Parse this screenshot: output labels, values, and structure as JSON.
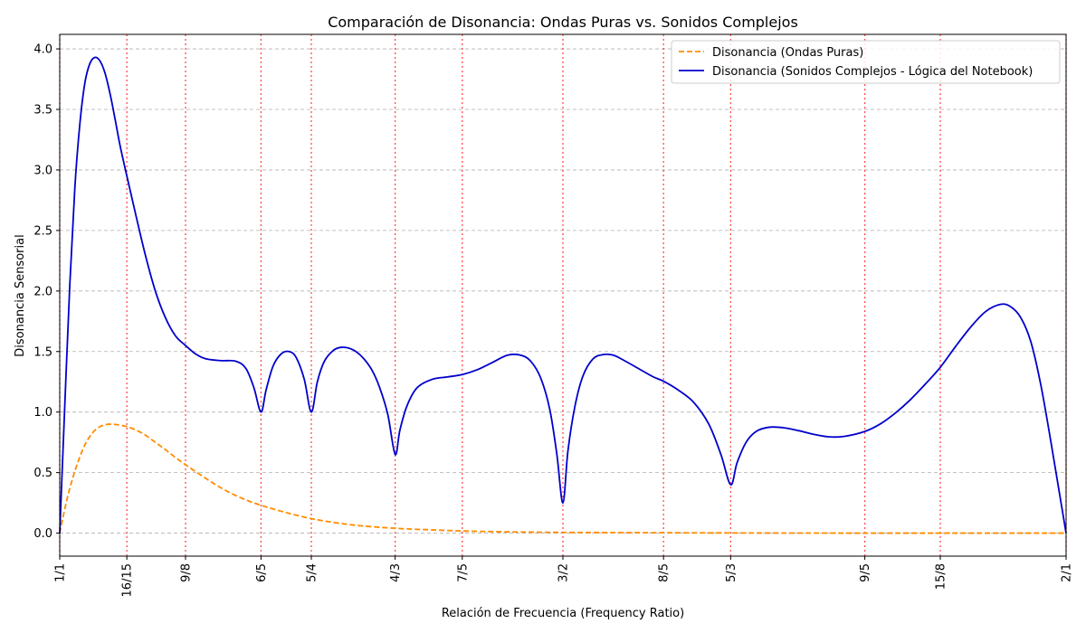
{
  "chart_data": {
    "type": "line",
    "title": "Comparación de Disonancia: Ondas Puras vs. Sonidos Complejos",
    "xlabel": "Relación de Frecuencia (Frequency Ratio)",
    "ylabel": "Disonancia Sensorial",
    "xlim": [
      1.0,
      2.0
    ],
    "ylim": [
      -0.19,
      4.12
    ],
    "y_ticks": [
      0.0,
      0.5,
      1.0,
      1.5,
      2.0,
      2.5,
      3.0,
      3.5,
      4.0
    ],
    "y_tick_labels": [
      "0.0",
      "0.5",
      "1.0",
      "1.5",
      "2.0",
      "2.5",
      "3.0",
      "3.5",
      "4.0"
    ],
    "x_ticks": [
      {
        "label": "1/1",
        "value": 1.0
      },
      {
        "label": "16/15",
        "value": 1.0667
      },
      {
        "label": "9/8",
        "value": 1.125
      },
      {
        "label": "6/5",
        "value": 1.2
      },
      {
        "label": "5/4",
        "value": 1.25
      },
      {
        "label": "4/3",
        "value": 1.3333
      },
      {
        "label": "7/5",
        "value": 1.4
      },
      {
        "label": "3/2",
        "value": 1.5
      },
      {
        "label": "8/5",
        "value": 1.6
      },
      {
        "label": "5/3",
        "value": 1.6667
      },
      {
        "label": "9/5",
        "value": 1.8
      },
      {
        "label": "15/8",
        "value": 1.875
      },
      {
        "label": "2/1",
        "value": 2.0
      }
    ],
    "grid": "horizontal dashed",
    "reference_lines": "vertical dotted red at each ratio tick",
    "legend_position": "top-right",
    "series": [
      {
        "name": "Disonancia (Ondas Puras)",
        "color": "#ff8c00",
        "style": "dashed",
        "points": [
          [
            1.0,
            0.0
          ],
          [
            1.005,
            0.2
          ],
          [
            1.01,
            0.37
          ],
          [
            1.015,
            0.51
          ],
          [
            1.02,
            0.63
          ],
          [
            1.025,
            0.73
          ],
          [
            1.03,
            0.8
          ],
          [
            1.035,
            0.85
          ],
          [
            1.04,
            0.88
          ],
          [
            1.045,
            0.895
          ],
          [
            1.05,
            0.9
          ],
          [
            1.055,
            0.898
          ],
          [
            1.06,
            0.892
          ],
          [
            1.0667,
            0.88
          ],
          [
            1.075,
            0.855
          ],
          [
            1.085,
            0.81
          ],
          [
            1.095,
            0.75
          ],
          [
            1.105,
            0.69
          ],
          [
            1.115,
            0.625
          ],
          [
            1.125,
            0.565
          ],
          [
            1.14,
            0.48
          ],
          [
            1.155,
            0.4
          ],
          [
            1.17,
            0.33
          ],
          [
            1.185,
            0.275
          ],
          [
            1.2,
            0.23
          ],
          [
            1.225,
            0.17
          ],
          [
            1.25,
            0.12
          ],
          [
            1.275,
            0.085
          ],
          [
            1.3,
            0.06
          ],
          [
            1.3333,
            0.04
          ],
          [
            1.36,
            0.03
          ],
          [
            1.4,
            0.018
          ],
          [
            1.45,
            0.01
          ],
          [
            1.5,
            0.006
          ],
          [
            1.6,
            0.003
          ],
          [
            1.7,
            0.001
          ],
          [
            1.8,
            0.0
          ],
          [
            1.9,
            0.0
          ],
          [
            2.0,
            0.0
          ]
        ]
      },
      {
        "name": "Disonancia (Sonidos Complejos - Lógica del Notebook)",
        "color": "#0000cc",
        "style": "solid",
        "points": [
          [
            1.0,
            0.0
          ],
          [
            1.005,
            1.05
          ],
          [
            1.01,
            2.05
          ],
          [
            1.015,
            2.85
          ],
          [
            1.02,
            3.38
          ],
          [
            1.025,
            3.72
          ],
          [
            1.03,
            3.88
          ],
          [
            1.035,
            3.93
          ],
          [
            1.04,
            3.9
          ],
          [
            1.045,
            3.8
          ],
          [
            1.05,
            3.63
          ],
          [
            1.055,
            3.42
          ],
          [
            1.06,
            3.2
          ],
          [
            1.0667,
            2.95
          ],
          [
            1.075,
            2.65
          ],
          [
            1.085,
            2.3
          ],
          [
            1.095,
            2.0
          ],
          [
            1.105,
            1.78
          ],
          [
            1.115,
            1.63
          ],
          [
            1.125,
            1.55
          ],
          [
            1.135,
            1.48
          ],
          [
            1.145,
            1.44
          ],
          [
            1.16,
            1.425
          ],
          [
            1.175,
            1.42
          ],
          [
            1.185,
            1.36
          ],
          [
            1.193,
            1.2
          ],
          [
            1.2,
            1.0
          ],
          [
            1.205,
            1.18
          ],
          [
            1.212,
            1.38
          ],
          [
            1.22,
            1.48
          ],
          [
            1.228,
            1.5
          ],
          [
            1.235,
            1.45
          ],
          [
            1.243,
            1.27
          ],
          [
            1.25,
            1.0
          ],
          [
            1.256,
            1.25
          ],
          [
            1.263,
            1.42
          ],
          [
            1.272,
            1.51
          ],
          [
            1.28,
            1.535
          ],
          [
            1.29,
            1.52
          ],
          [
            1.3,
            1.46
          ],
          [
            1.31,
            1.35
          ],
          [
            1.318,
            1.2
          ],
          [
            1.326,
            0.98
          ],
          [
            1.3333,
            0.65
          ],
          [
            1.338,
            0.85
          ],
          [
            1.345,
            1.05
          ],
          [
            1.355,
            1.2
          ],
          [
            1.37,
            1.27
          ],
          [
            1.385,
            1.29
          ],
          [
            1.4,
            1.31
          ],
          [
            1.415,
            1.35
          ],
          [
            1.43,
            1.41
          ],
          [
            1.445,
            1.47
          ],
          [
            1.458,
            1.47
          ],
          [
            1.468,
            1.42
          ],
          [
            1.478,
            1.28
          ],
          [
            1.487,
            1.02
          ],
          [
            1.494,
            0.65
          ],
          [
            1.5,
            0.25
          ],
          [
            1.505,
            0.68
          ],
          [
            1.512,
            1.05
          ],
          [
            1.52,
            1.3
          ],
          [
            1.53,
            1.44
          ],
          [
            1.54,
            1.475
          ],
          [
            1.55,
            1.47
          ],
          [
            1.56,
            1.43
          ],
          [
            1.575,
            1.36
          ],
          [
            1.59,
            1.29
          ],
          [
            1.6,
            1.255
          ],
          [
            1.615,
            1.18
          ],
          [
            1.63,
            1.08
          ],
          [
            1.645,
            0.9
          ],
          [
            1.657,
            0.65
          ],
          [
            1.6667,
            0.4
          ],
          [
            1.673,
            0.58
          ],
          [
            1.682,
            0.75
          ],
          [
            1.692,
            0.84
          ],
          [
            1.705,
            0.875
          ],
          [
            1.72,
            0.87
          ],
          [
            1.735,
            0.845
          ],
          [
            1.75,
            0.815
          ],
          [
            1.765,
            0.795
          ],
          [
            1.78,
            0.8
          ],
          [
            1.8,
            0.84
          ],
          [
            1.815,
            0.9
          ],
          [
            1.83,
            0.99
          ],
          [
            1.845,
            1.1
          ],
          [
            1.86,
            1.23
          ],
          [
            1.875,
            1.37
          ],
          [
            1.89,
            1.54
          ],
          [
            1.905,
            1.7
          ],
          [
            1.92,
            1.83
          ],
          [
            1.935,
            1.89
          ],
          [
            1.945,
            1.87
          ],
          [
            1.955,
            1.78
          ],
          [
            1.965,
            1.58
          ],
          [
            1.975,
            1.22
          ],
          [
            1.985,
            0.75
          ],
          [
            1.993,
            0.35
          ],
          [
            2.0,
            0.0
          ]
        ]
      }
    ]
  }
}
